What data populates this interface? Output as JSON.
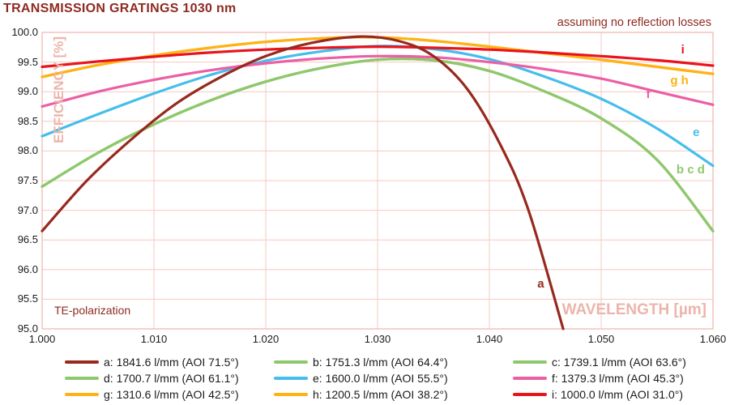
{
  "title": "TRANSMISSION GRATINGS 1030 nm",
  "annotations": {
    "top_right": "assuming no reflection losses",
    "bottom_left": "TE-polarization"
  },
  "colors": {
    "title_red": "#8E2A21",
    "grid": "#F6C9C0",
    "border": "#EFB5AB",
    "axis_title": "#ECB5AB",
    "tick_text": "#1A1A1A"
  },
  "chart_data": {
    "type": "line",
    "title": "TRANSMISSION GRATINGS 1030 nm",
    "xlabel": "WAVELENGTH [µm]",
    "ylabel": "EFFICIENCY [%]",
    "xlim": [
      1.0,
      1.06
    ],
    "ylim": [
      95.0,
      100.0
    ],
    "grid": true,
    "x_ticks": [
      {
        "v": 1.0,
        "label": "1.000"
      },
      {
        "v": 1.01,
        "label": "1.010"
      },
      {
        "v": 1.02,
        "label": "1.020"
      },
      {
        "v": 1.03,
        "label": "1.030"
      },
      {
        "v": 1.04,
        "label": "1.040"
      },
      {
        "v": 1.05,
        "label": "1.050"
      },
      {
        "v": 1.06,
        "label": "1.060"
      }
    ],
    "y_ticks": [
      {
        "v": 100.0,
        "label": "100.0"
      },
      {
        "v": 99.5,
        "label": "99.5"
      },
      {
        "v": 99.0,
        "label": "99.0"
      },
      {
        "v": 98.5,
        "label": "98.5"
      },
      {
        "v": 98.0,
        "label": "98.0"
      },
      {
        "v": 97.5,
        "label": "97.5"
      },
      {
        "v": 97.0,
        "label": "97.0"
      },
      {
        "v": 96.5,
        "label": "96.5"
      },
      {
        "v": 96.0,
        "label": "96.0"
      },
      {
        "v": 95.5,
        "label": "95.5"
      },
      {
        "v": 95.0,
        "label": "95.0"
      }
    ],
    "draw_order": [
      "b",
      "c",
      "d",
      "e",
      "f",
      "g",
      "h",
      "i",
      "a"
    ],
    "series": [
      {
        "id": "a",
        "legend": "a: 1841.6 l/mm (AOI 71.5°)",
        "color": "#97291E",
        "points": [
          [
            1.0,
            96.65
          ],
          [
            1.004,
            97.5
          ],
          [
            1.008,
            98.2
          ],
          [
            1.012,
            98.8
          ],
          [
            1.016,
            99.25
          ],
          [
            1.02,
            99.6
          ],
          [
            1.024,
            99.82
          ],
          [
            1.0285,
            99.93
          ],
          [
            1.032,
            99.85
          ],
          [
            1.035,
            99.6
          ],
          [
            1.038,
            99.05
          ],
          [
            1.041,
            98.1
          ],
          [
            1.0435,
            97.0
          ],
          [
            1.0466,
            95.0
          ]
        ]
      },
      {
        "id": "b",
        "legend": "b: 1751.3 l/mm (AOI 64.4°)",
        "color": "#8FC86C",
        "points": [
          [
            1.0,
            97.4
          ],
          [
            1.005,
            97.97
          ],
          [
            1.01,
            98.45
          ],
          [
            1.015,
            98.85
          ],
          [
            1.02,
            99.17
          ],
          [
            1.025,
            99.4
          ],
          [
            1.03,
            99.54
          ],
          [
            1.035,
            99.53
          ],
          [
            1.04,
            99.35
          ],
          [
            1.045,
            99.0
          ],
          [
            1.05,
            98.55
          ],
          [
            1.055,
            97.85
          ],
          [
            1.06,
            96.65
          ]
        ]
      },
      {
        "id": "c",
        "legend": "c: 1739.1 l/mm (AOI 63.6°)",
        "color": "#8FC86C",
        "points": [
          [
            1.0,
            97.4
          ],
          [
            1.005,
            97.97
          ],
          [
            1.01,
            98.45
          ],
          [
            1.015,
            98.85
          ],
          [
            1.02,
            99.17
          ],
          [
            1.025,
            99.4
          ],
          [
            1.03,
            99.54
          ],
          [
            1.035,
            99.53
          ],
          [
            1.04,
            99.35
          ],
          [
            1.045,
            99.0
          ],
          [
            1.05,
            98.55
          ],
          [
            1.055,
            97.85
          ],
          [
            1.06,
            96.65
          ]
        ]
      },
      {
        "id": "d",
        "legend": "d: 1700.7 l/mm (AOI 61.1°)",
        "color": "#8FC86C",
        "points": [
          [
            1.0,
            97.4
          ],
          [
            1.005,
            97.97
          ],
          [
            1.01,
            98.45
          ],
          [
            1.015,
            98.85
          ],
          [
            1.02,
            99.17
          ],
          [
            1.025,
            99.4
          ],
          [
            1.03,
            99.54
          ],
          [
            1.035,
            99.53
          ],
          [
            1.04,
            99.35
          ],
          [
            1.045,
            99.0
          ],
          [
            1.05,
            98.55
          ],
          [
            1.055,
            97.85
          ],
          [
            1.06,
            96.65
          ]
        ]
      },
      {
        "id": "e",
        "legend": "e: 1600.0 l/mm (AOI 55.5°)",
        "color": "#45BEEC",
        "points": [
          [
            1.0,
            98.25
          ],
          [
            1.005,
            98.62
          ],
          [
            1.01,
            98.97
          ],
          [
            1.015,
            99.28
          ],
          [
            1.02,
            99.52
          ],
          [
            1.025,
            99.68
          ],
          [
            1.03,
            99.77
          ],
          [
            1.035,
            99.72
          ],
          [
            1.04,
            99.55
          ],
          [
            1.045,
            99.25
          ],
          [
            1.05,
            98.88
          ],
          [
            1.055,
            98.38
          ],
          [
            1.06,
            97.75
          ]
        ]
      },
      {
        "id": "f",
        "legend": "f: 1379.3 l/mm (AOI 45.3°)",
        "color": "#EC5FA5",
        "points": [
          [
            1.0,
            98.75
          ],
          [
            1.005,
            99.0
          ],
          [
            1.01,
            99.2
          ],
          [
            1.015,
            99.36
          ],
          [
            1.02,
            99.48
          ],
          [
            1.025,
            99.56
          ],
          [
            1.03,
            99.6
          ],
          [
            1.035,
            99.58
          ],
          [
            1.04,
            99.5
          ],
          [
            1.045,
            99.38
          ],
          [
            1.05,
            99.22
          ],
          [
            1.055,
            99.0
          ],
          [
            1.06,
            98.78
          ]
        ]
      },
      {
        "id": "g",
        "legend": "g: 1310.6 l/mm (AOI 42.5°)",
        "color": "#FFB216",
        "points": [
          [
            1.0,
            99.25
          ],
          [
            1.005,
            99.45
          ],
          [
            1.01,
            99.61
          ],
          [
            1.015,
            99.74
          ],
          [
            1.02,
            99.84
          ],
          [
            1.025,
            99.9
          ],
          [
            1.0285,
            99.92
          ],
          [
            1.032,
            99.9
          ],
          [
            1.036,
            99.84
          ],
          [
            1.04,
            99.76
          ],
          [
            1.045,
            99.65
          ],
          [
            1.05,
            99.54
          ],
          [
            1.055,
            99.42
          ],
          [
            1.06,
            99.3
          ]
        ]
      },
      {
        "id": "h",
        "legend": "h: 1200.5 l/mm (AOI 38.2°)",
        "color": "#FFB216",
        "points": [
          [
            1.0,
            99.25
          ],
          [
            1.005,
            99.45
          ],
          [
            1.01,
            99.61
          ],
          [
            1.015,
            99.74
          ],
          [
            1.02,
            99.84
          ],
          [
            1.025,
            99.9
          ],
          [
            1.0285,
            99.92
          ],
          [
            1.032,
            99.9
          ],
          [
            1.036,
            99.84
          ],
          [
            1.04,
            99.76
          ],
          [
            1.045,
            99.65
          ],
          [
            1.05,
            99.54
          ],
          [
            1.055,
            99.42
          ],
          [
            1.06,
            99.3
          ]
        ]
      },
      {
        "id": "i",
        "legend": "i: 1000.0 l/mm (AOI 31.0°)",
        "color": "#E9131C",
        "points": [
          [
            1.0,
            99.42
          ],
          [
            1.005,
            99.51
          ],
          [
            1.01,
            99.59
          ],
          [
            1.015,
            99.66
          ],
          [
            1.02,
            99.71
          ],
          [
            1.025,
            99.74
          ],
          [
            1.03,
            99.76
          ],
          [
            1.035,
            99.74
          ],
          [
            1.04,
            99.71
          ],
          [
            1.045,
            99.66
          ],
          [
            1.05,
            99.6
          ],
          [
            1.055,
            99.53
          ],
          [
            1.06,
            99.44
          ]
        ]
      }
    ],
    "curve_labels": [
      {
        "text": "a",
        "x": 1.0446,
        "y": 95.75,
        "color": "#97291E"
      },
      {
        "text": "b c d",
        "x": 1.058,
        "y": 97.68,
        "color": "#8FC86C"
      },
      {
        "text": "e",
        "x": 1.0585,
        "y": 98.3,
        "color": "#45BEEC"
      },
      {
        "text": "f",
        "x": 1.0542,
        "y": 98.95,
        "color": "#EC5FA5"
      },
      {
        "text": "g h",
        "x": 1.057,
        "y": 99.18,
        "color": "#FFB216"
      },
      {
        "text": "i",
        "x": 1.0573,
        "y": 99.7,
        "color": "#E9131C"
      }
    ]
  }
}
